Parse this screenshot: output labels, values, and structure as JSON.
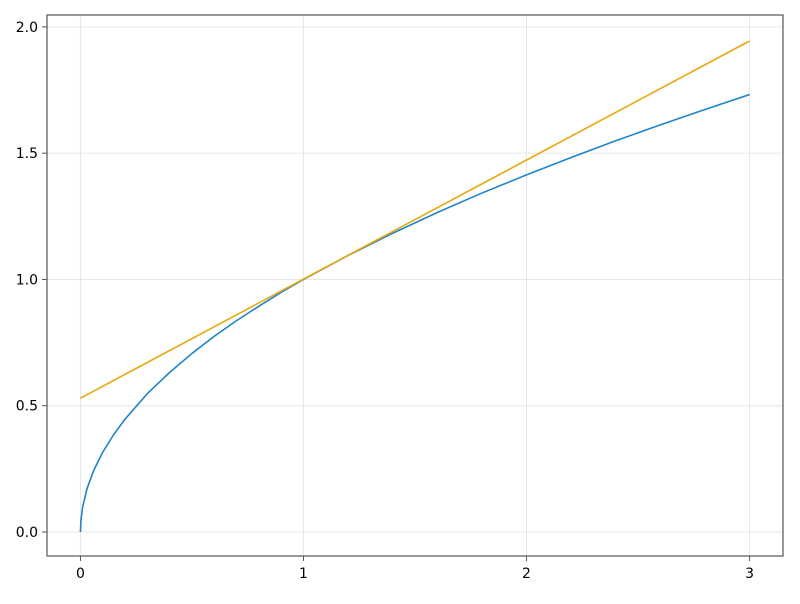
{
  "chart_data": {
    "type": "line",
    "title": "",
    "xlabel": "",
    "ylabel": "",
    "xlim": [
      -0.15,
      3.15
    ],
    "ylim": [
      -0.095,
      2.047
    ],
    "grid": true,
    "xticks": [
      0,
      1,
      2,
      3
    ],
    "xtick_labels": [
      "0",
      "1",
      "2",
      "3"
    ],
    "yticks": [
      0,
      0.5,
      1,
      1.5,
      2
    ],
    "ytick_labels": [
      "0.0",
      "0.5",
      "1.0",
      "1.5",
      "2.0"
    ],
    "series": [
      {
        "color": "#1f85c6",
        "x": [
          0,
          0.002,
          0.01,
          0.03,
          0.06,
          0.1,
          0.15,
          0.2,
          0.3,
          0.4,
          0.5,
          0.6,
          0.7,
          0.8,
          0.9,
          1.0,
          1.2,
          1.4,
          1.6,
          1.8,
          2.0,
          2.2,
          2.4,
          2.6,
          2.8,
          3.0
        ],
        "y": [
          0,
          0.045,
          0.1,
          0.173,
          0.245,
          0.316,
          0.387,
          0.447,
          0.548,
          0.632,
          0.707,
          0.775,
          0.837,
          0.894,
          0.949,
          1.0,
          1.095,
          1.183,
          1.265,
          1.342,
          1.414,
          1.483,
          1.549,
          1.612,
          1.673,
          1.732
        ]
      },
      {
        "color": "#e8a80c",
        "x": [
          0,
          3
        ],
        "y": [
          0.53,
          1.944
        ]
      }
    ]
  }
}
